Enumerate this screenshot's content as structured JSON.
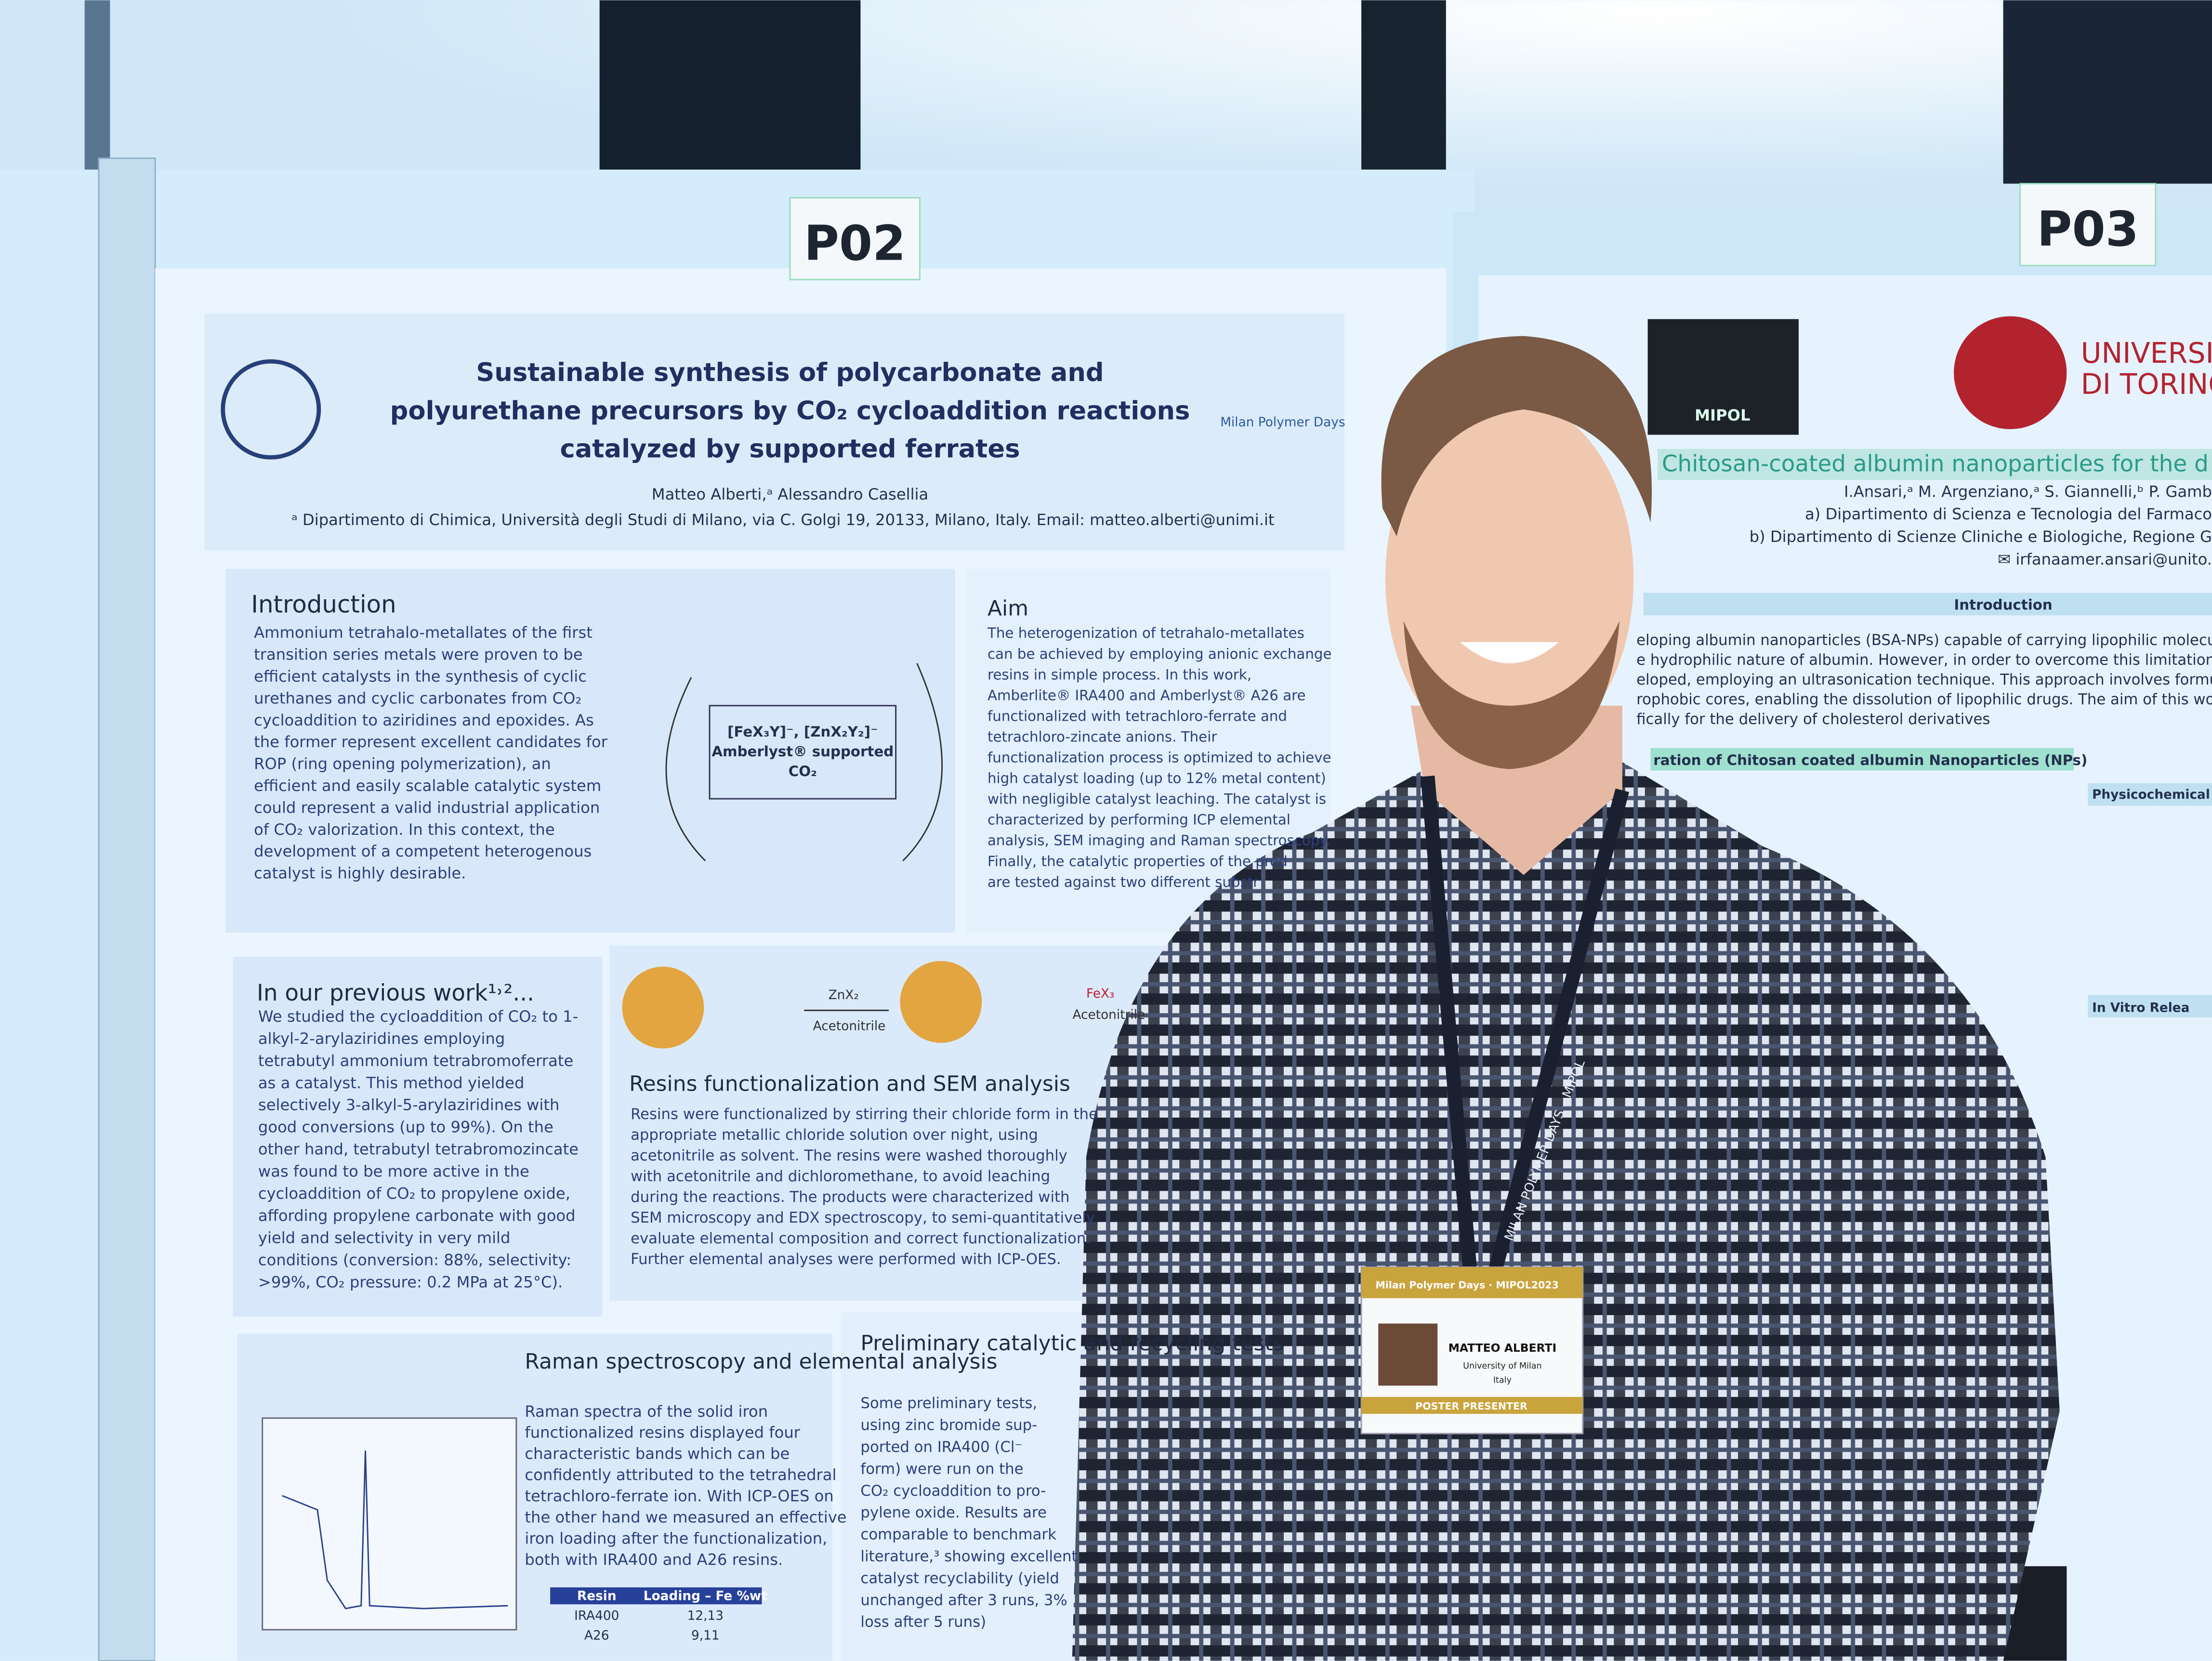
{
  "labels": {
    "left_board": "P02",
    "right_board": "P03"
  },
  "poster": {
    "title": [
      "Sustainable synthesis of polycarbonate and",
      "polyurethane precursors by CO₂ cycloaddition reactions",
      "catalyzed by supported ferrates"
    ],
    "brand": "Milan Polymer Days",
    "authors": "Matteo Alberti,ᵃ Alessandro Casellia",
    "affiliation": "ᵃ Dipartimento di Chimica, Università degli Studi di Milano, via C. Golgi 19, 20133, Milano, Italy. Email: matteo.alberti@unimi.it",
    "scheme": [
      "[FeX₃Y]⁻, [ZnX₂Y₂]⁻",
      "Amberlyst® supported",
      "CO₂"
    ],
    "sections": [
      {
        "heading": "Introduction",
        "lines": [
          "Ammonium tetrahalo-metallates of the first",
          "transition series metals were proven to be",
          "efficient catalysts in the synthesis of cyclic",
          "urethanes and cyclic carbonates from CO₂",
          "cycloaddition to aziridines and epoxides. As",
          "the former represent excellent candidates for",
          "ROP (ring opening polymerization), an",
          "efficient and easily scalable catalytic system",
          "could represent a valid industrial application",
          "of CO₂ valorization. In this context, the",
          "development of  a competent heterogenous",
          "catalyst is highly desirable."
        ]
      },
      {
        "heading": "Aim",
        "lines": [
          "The heterogenization of tetrahalo-metallates",
          "can be achieved by employing anionic exchange",
          "resins in simple process. In this work,",
          "Amberlite® IRA400 and Amberlyst® A26 are",
          "functionalized with tetrachloro-ferrate and",
          "tetrachloro-zincate anions. Their",
          "functionalization process is optimized to achieve",
          "high catalyst loading (up to 12% metal content)",
          "with negligible catalyst leaching. The catalyst is",
          "characterized by performing ICP elemental",
          "analysis, SEM imaging and Raman spectroscopy.",
          "Finally, the catalytic properties of the prod",
          "are tested against two different substr"
        ]
      },
      {
        "heading": "In our previous work¹˒²...",
        "lines": [
          "We studied the cycloaddition of CO₂ to 1-",
          "alkyl-2-arylaziridines employing",
          "tetrabutyl ammonium tetrabromoferrate",
          "as a catalyst. This method yielded",
          "selectively 3-alkyl-5-arylaziridines with",
          "good conversions (up to 99%). On the",
          "other hand, tetrabutyl tetrabromozincate",
          "was found to be more active in the",
          "cycloaddition of CO₂ to propylene oxide,",
          "affording propylene carbonate with good",
          "yield and selectivity in very mild",
          "conditions (conversion: 88%, selectivity:",
          ">99%, CO₂ pressure: 0.2 MPa at 25°C)."
        ]
      },
      {
        "heading": "Resins functionalization and SEM analysis",
        "lines": [
          "Resins were functionalized by stirring their chloride form in the",
          "appropriate metallic chloride solution over night, using",
          "acetonitrile as solvent. The resins were washed thoroughly",
          "with acetonitrile and dichloromethane, to avoid leaching",
          "during the reactions. The products were characterized with",
          "SEM microscopy and EDX spectroscopy, to semi-quantitatively",
          "evaluate elemental composition and correct functionalization.",
          "Further elemental analyses were performed with ICP-OES."
        ]
      },
      {
        "heading": "Raman spectroscopy and elemental analysis",
        "lines": [
          "Raman spectra of the solid iron",
          "functionalized resins displayed four",
          "characteristic bands which can be",
          "confidently attributed to the tetrahedral",
          "tetrachloro-ferrate ion. With ICP-OES on",
          "the other hand we measured an effective",
          "iron loading after the functionalization,",
          "both with IRA400 and A26 resins."
        ]
      },
      {
        "heading": "Preliminary catalytic and recycling tests",
        "lines": [
          "Some preliminary tests,",
          "using zinc bromide sup-",
          "ported on IRA400 (Cl⁻",
          "form) were run on the",
          "CO₂ cycloaddition to pro-",
          "pylene oxide. Results are",
          "comparable to benchmark",
          "literature,³ showing excellent",
          "catalyst recyclability (yield",
          "unchanged after 3 runs, 3%",
          "loss after 5 runs)"
        ]
      }
    ],
    "table": {
      "header": [
        "Resin",
        "Loading – Fe %wt"
      ],
      "rows": [
        [
          "IRA400",
          "12,13"
        ],
        [
          "A26",
          "9,11"
        ]
      ]
    },
    "scheme_labels": [
      "ZnX₂",
      "Acetonitrile",
      "FeX₃",
      "Acetonitrile"
    ]
  },
  "right_poster": {
    "logo": "MIPOL",
    "university": [
      "UNIVERSITÀ",
      "DI TORINO"
    ],
    "title": "Chitosan-coated albumin nanoparticles for the d",
    "authors": "I.Ansari,ᵃ M. Argenziano,ᵃ S. Giannelli,ᵇ P. Gamb",
    "affiliations": [
      "a) Dipartimento di Scienza e Tecnologia del Farmaco",
      "b) Dipartimento di Scienze Cliniche e Biologiche, Regione G",
      "✉ irfanaamer.ansari@unito."
    ],
    "intro_heading": "Introduction",
    "intro_lines": [
      "eloping albumin nanoparticles (BSA-NPs) capable of carrying lipophilic molecules po",
      "e hydrophilic nature of albumin. However, in order to overcome this limitation, a",
      "eloped, employing an ultrasonication technique. This approach involves formulati",
      "rophobic cores, enabling the dissolution of lipophilic drugs. The aim of this wo",
      "fically for the delivery of cholesterol derivatives"
    ],
    "sub_heading": "ration of Chitosan coated albumin Nanoparticles (NPs)",
    "side_heading": "Physicochemical C",
    "side_heading2": "In Vitro Relea"
  },
  "badge": {
    "event": "Milan Polymer Days · MIPOL2023",
    "name": "MATTEO ALBERTI",
    "affiliation": [
      "University of Milan",
      "Italy"
    ],
    "role": "POSTER PRESENTER"
  },
  "lanyard": "MILAN POLYMER DAYS – MIPOL"
}
